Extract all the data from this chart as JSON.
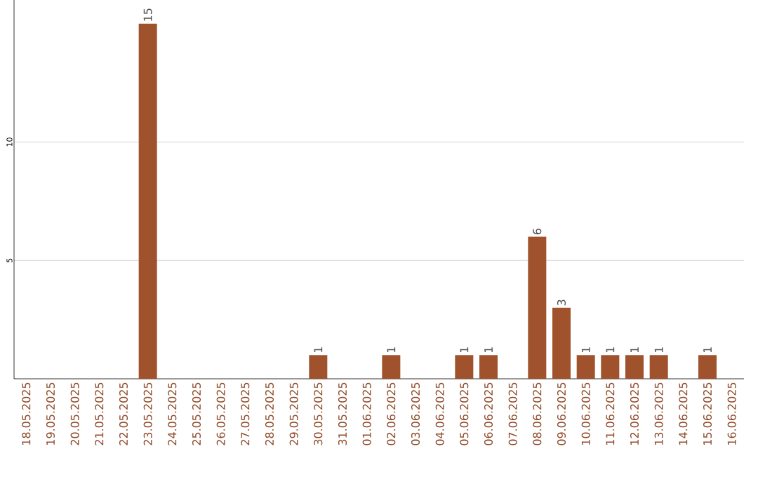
{
  "chart_data": {
    "type": "bar",
    "categories": [
      "18.05.2025",
      "19.05.2025",
      "20.05.2025",
      "21.05.2025",
      "22.05.2025",
      "23.05.2025",
      "24.05.2025",
      "25.05.2025",
      "26.05.2025",
      "27.05.2025",
      "28.05.2025",
      "29.05.2025",
      "30.05.2025",
      "31.05.2025",
      "01.06.2025",
      "02.06.2025",
      "03.06.2025",
      "04.06.2025",
      "05.06.2025",
      "06.06.2025",
      "07.06.2025",
      "08.06.2025",
      "09.06.2025",
      "10.06.2025",
      "11.06.2025",
      "12.06.2025",
      "13.06.2025",
      "14.06.2025",
      "15.06.2025",
      "16.06.2025"
    ],
    "values": [
      0,
      0,
      0,
      0,
      0,
      15,
      0,
      0,
      0,
      0,
      0,
      0,
      1,
      0,
      0,
      1,
      0,
      0,
      1,
      1,
      0,
      6,
      3,
      1,
      1,
      1,
      1,
      0,
      1,
      0
    ],
    "value_labels": [
      null,
      null,
      null,
      null,
      null,
      "15",
      null,
      null,
      null,
      null,
      null,
      null,
      "1",
      null,
      null,
      "1",
      null,
      null,
      "1",
      "1",
      null,
      "6",
      "3",
      "1",
      "1",
      "1",
      "1",
      null,
      "1",
      null
    ],
    "color": "#a0522d",
    "ylim": [
      0,
      16
    ],
    "yticks": [
      5,
      10
    ],
    "grid": "y"
  }
}
